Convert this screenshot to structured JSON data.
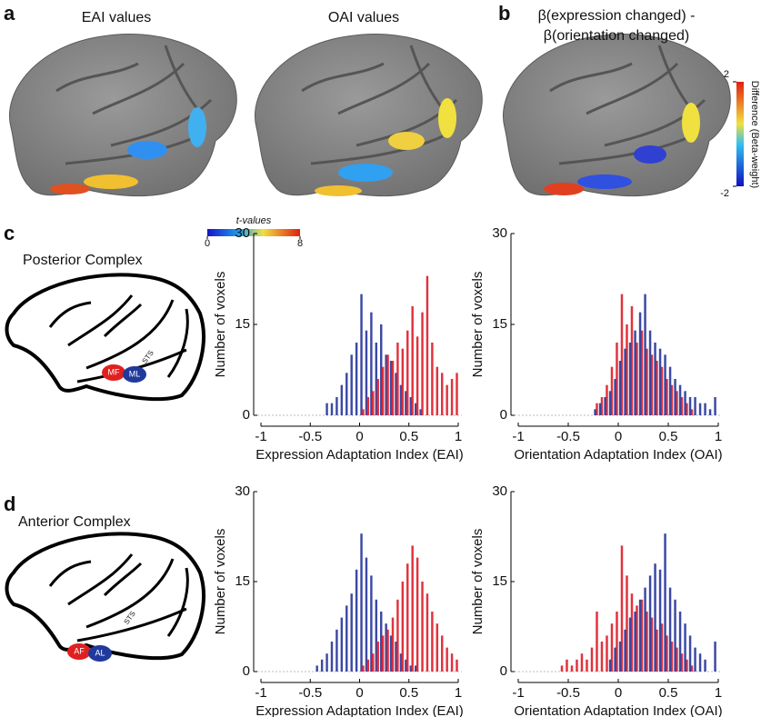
{
  "panel_labels": [
    "a",
    "b",
    "c",
    "d"
  ],
  "brain_titles": [
    "EAI values",
    "OAI values",
    "β(expression changed) -",
    "β(orientation changed)"
  ],
  "colorbars": [
    {
      "label": "t-values",
      "lim": [
        0,
        8
      ],
      "ticks": [
        0,
        8
      ]
    },
    {
      "label": "Difference (Beta-weight)",
      "lim": [
        -2,
        2
      ],
      "ticks": [
        -2,
        2
      ]
    }
  ],
  "diagrams": [
    {
      "title": "Posterior Complex",
      "sulcus": "STS",
      "regions": [
        "MF",
        "ML"
      ]
    },
    {
      "title": "Anterior Complex",
      "sulcus": "STS",
      "regions": [
        "AF",
        "AL"
      ]
    }
  ],
  "chart_data": [
    {
      "type": "histogram",
      "x_label": "Expression Adaptation Index (EAI)",
      "y_label": "Number of voxels",
      "bins": [
        -0.6,
        -0.55,
        -0.5,
        -0.45,
        -0.4,
        -0.35,
        -0.3,
        -0.25,
        -0.2,
        -0.15,
        -0.1,
        -0.05,
        0,
        0.05,
        0.1,
        0.15,
        0.2,
        0.25,
        0.3,
        0.35,
        0.4,
        0.45,
        0.5,
        0.55,
        0.6,
        0.65,
        0.7,
        0.75,
        0.8,
        0.85,
        0.9,
        0.95,
        1.0
      ],
      "series": [
        {
          "color": "#2a3a9c",
          "values": [
            0,
            0,
            0,
            0,
            0,
            2,
            2,
            3,
            5,
            7,
            10,
            12,
            20,
            14,
            17,
            12,
            15,
            10,
            9,
            7,
            5,
            4,
            3,
            2,
            1,
            0,
            0,
            0,
            0,
            0,
            0,
            0
          ]
        },
        {
          "color": "#e0202a",
          "values": [
            0,
            0,
            0,
            0,
            0,
            0,
            0,
            0,
            0,
            0,
            0,
            0,
            1,
            3,
            4,
            6,
            8,
            10,
            9,
            12,
            11,
            14,
            18,
            13,
            17,
            23,
            12,
            8,
            7,
            5,
            6,
            7
          ]
        }
      ],
      "xlim": [
        -1,
        1
      ],
      "xticks": [
        -1,
        -0.5,
        0,
        0.5,
        1
      ],
      "ylim": [
        0,
        30
      ],
      "yticks": [
        0,
        15,
        30
      ]
    },
    {
      "type": "histogram",
      "x_label": "Orientation Adaptation Index (OAI)",
      "y_label": "Number of voxels",
      "bins": [
        -0.6,
        -0.55,
        -0.5,
        -0.45,
        -0.4,
        -0.35,
        -0.3,
        -0.25,
        -0.2,
        -0.15,
        -0.1,
        -0.05,
        0,
        0.05,
        0.1,
        0.15,
        0.2,
        0.25,
        0.3,
        0.35,
        0.4,
        0.45,
        0.5,
        0.55,
        0.6,
        0.65,
        0.7,
        0.75,
        0.8,
        0.85,
        0.9,
        0.95,
        1.0
      ],
      "series": [
        {
          "color": "#e0202a",
          "values": [
            0,
            0,
            0,
            0,
            0,
            0,
            0,
            2,
            3,
            5,
            8,
            12,
            20,
            15,
            18,
            12,
            14,
            11,
            10,
            9,
            8,
            6,
            5,
            4,
            3,
            2,
            1,
            0,
            0,
            0,
            0,
            0
          ]
        },
        {
          "color": "#2a3a9c",
          "values": [
            0,
            0,
            0,
            0,
            0,
            0,
            0,
            1,
            2,
            3,
            4,
            6,
            9,
            11,
            12,
            14,
            17,
            20,
            14,
            12,
            11,
            10,
            8,
            6,
            5,
            4,
            3,
            3,
            2,
            2,
            1,
            3
          ]
        }
      ],
      "xlim": [
        -1,
        1
      ],
      "xticks": [
        -1,
        -0.5,
        0,
        0.5,
        1
      ],
      "ylim": [
        0,
        30
      ],
      "yticks": [
        0,
        15,
        30
      ]
    },
    {
      "type": "histogram",
      "x_label": "Expression Adaptation Index (EAI)",
      "y_label": "Number of voxels",
      "bins": [
        -0.6,
        -0.55,
        -0.5,
        -0.45,
        -0.4,
        -0.35,
        -0.3,
        -0.25,
        -0.2,
        -0.15,
        -0.1,
        -0.05,
        0,
        0.05,
        0.1,
        0.15,
        0.2,
        0.25,
        0.3,
        0.35,
        0.4,
        0.45,
        0.5,
        0.55,
        0.6,
        0.65,
        0.7,
        0.75,
        0.8,
        0.85,
        0.9,
        0.95,
        1.0
      ],
      "series": [
        {
          "color": "#2a3a9c",
          "values": [
            0,
            0,
            0,
            1,
            2,
            3,
            5,
            7,
            9,
            11,
            13,
            17,
            23,
            19,
            16,
            12,
            10,
            8,
            6,
            5,
            3,
            2,
            1,
            1,
            0,
            0,
            0,
            0,
            0,
            0,
            0,
            0
          ]
        },
        {
          "color": "#e0202a",
          "values": [
            0,
            0,
            0,
            0,
            0,
            0,
            0,
            0,
            0,
            0,
            0,
            0,
            1,
            2,
            3,
            5,
            6,
            7,
            9,
            12,
            15,
            18,
            21,
            19,
            15,
            13,
            10,
            8,
            6,
            4,
            3,
            2
          ]
        }
      ],
      "xlim": [
        -1,
        1
      ],
      "xticks": [
        -1,
        -0.5,
        0,
        0.5,
        1
      ],
      "ylim": [
        0,
        30
      ],
      "yticks": [
        0,
        15,
        30
      ]
    },
    {
      "type": "histogram",
      "x_label": "Orientation Adaptation Index (OAI)",
      "y_label": "Number of voxels",
      "bins": [
        -0.6,
        -0.55,
        -0.5,
        -0.45,
        -0.4,
        -0.35,
        -0.3,
        -0.25,
        -0.2,
        -0.15,
        -0.1,
        -0.05,
        0,
        0.05,
        0.1,
        0.15,
        0.2,
        0.25,
        0.3,
        0.35,
        0.4,
        0.45,
        0.5,
        0.55,
        0.6,
        0.65,
        0.7,
        0.75,
        0.8,
        0.85,
        0.9,
        0.95,
        1.0
      ],
      "series": [
        {
          "color": "#e0202a",
          "values": [
            1,
            2,
            1,
            2,
            3,
            2,
            4,
            10,
            5,
            6,
            8,
            10,
            21,
            16,
            13,
            11,
            12,
            10,
            9,
            7,
            8,
            6,
            5,
            4,
            3,
            2,
            1,
            0,
            0,
            0,
            0,
            0
          ]
        },
        {
          "color": "#2a3a9c",
          "values": [
            0,
            0,
            0,
            0,
            0,
            0,
            0,
            0,
            0,
            0,
            2,
            4,
            5,
            7,
            9,
            10,
            12,
            14,
            16,
            18,
            17,
            23,
            14,
            12,
            10,
            8,
            6,
            4,
            3,
            2,
            0,
            5
          ]
        }
      ],
      "xlim": [
        -1,
        1
      ],
      "xticks": [
        -1,
        -0.5,
        0,
        0.5,
        1
      ],
      "ylim": [
        0,
        30
      ],
      "yticks": [
        0,
        15,
        30
      ]
    }
  ]
}
